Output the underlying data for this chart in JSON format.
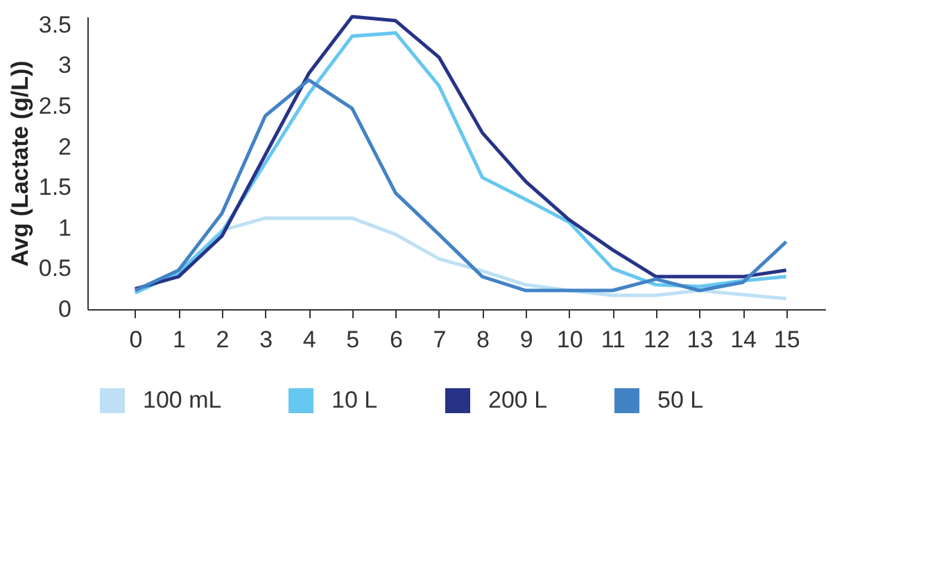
{
  "chart_data": {
    "type": "line",
    "ylabel": "Avg (Lactate (g/L))",
    "x": [
      0,
      1,
      2,
      3,
      4,
      5,
      6,
      7,
      8,
      9,
      10,
      11,
      12,
      13,
      14,
      15
    ],
    "series": [
      {
        "name": "100 mL",
        "color": "#bde0f5",
        "values": [
          0.2,
          0.45,
          0.97,
          1.12,
          1.12,
          1.12,
          0.92,
          0.62,
          0.47,
          0.3,
          0.23,
          0.17,
          0.17,
          0.23,
          0.18,
          0.13
        ]
      },
      {
        "name": "10 L",
        "color": "#66c7f0",
        "values": [
          0.2,
          0.45,
          0.95,
          1.8,
          2.65,
          3.36,
          3.4,
          2.75,
          1.62,
          1.35,
          1.07,
          0.5,
          0.3,
          0.28,
          0.35,
          0.4
        ]
      },
      {
        "name": "200 L",
        "color": "#263387",
        "values": [
          0.25,
          0.4,
          0.9,
          1.9,
          2.9,
          3.6,
          3.55,
          3.1,
          2.17,
          1.57,
          1.1,
          0.73,
          0.4,
          0.4,
          0.4,
          0.48
        ]
      },
      {
        "name": "50 L",
        "color": "#4283c6",
        "values": [
          0.23,
          0.48,
          1.18,
          2.38,
          2.82,
          2.47,
          1.43,
          0.92,
          0.4,
          0.23,
          0.23,
          0.23,
          0.37,
          0.23,
          0.33,
          0.83
        ]
      }
    ],
    "xlim": [
      -1.1,
      15.9
    ],
    "ylim": [
      0,
      3.6
    ],
    "xticks": [
      0,
      1,
      2,
      3,
      4,
      5,
      6,
      7,
      8,
      9,
      10,
      11,
      12,
      13,
      14,
      15
    ],
    "yticks": [
      0,
      0.5,
      1,
      1.5,
      2,
      2.5,
      3,
      3.5
    ],
    "grid": false,
    "legend": "bottom",
    "marker": "none",
    "line_style": "solid"
  }
}
